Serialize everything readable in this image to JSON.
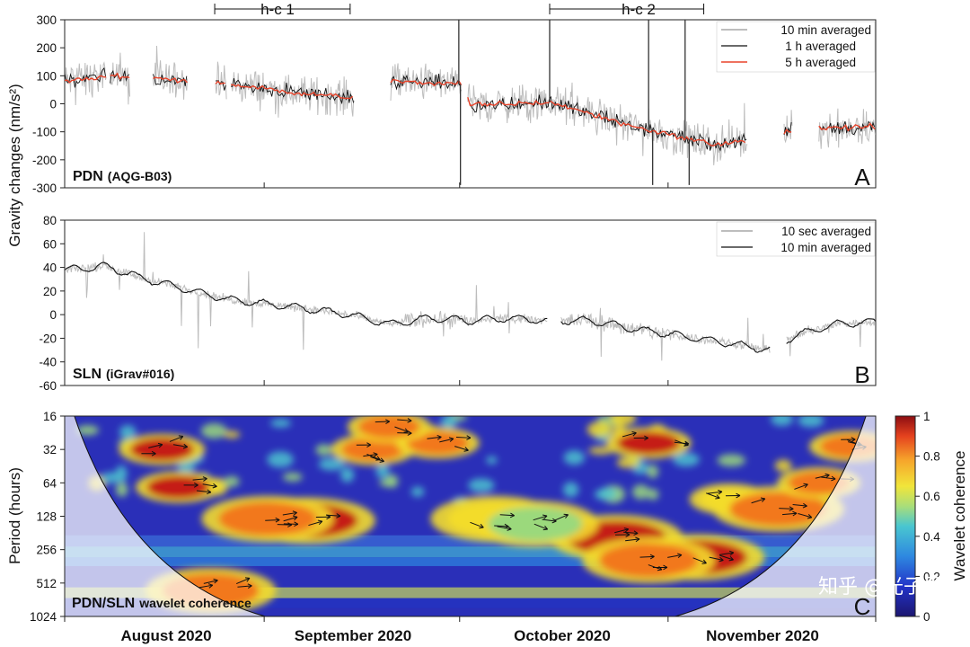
{
  "y_axis_label": "Gravity changes (nm/s²)",
  "x_axis": {
    "months": [
      "August 2020",
      "September 2020",
      "October 2020",
      "November 2020"
    ]
  },
  "watermark": "知乎 @光子鼠",
  "chart_data": [
    {
      "type": "line",
      "panel": "A",
      "station": "PDN",
      "instrument": "(AQG-B03)",
      "ylim": [
        -300,
        300
      ],
      "yticks": [
        300,
        200,
        100,
        0,
        -100,
        -200,
        -300
      ],
      "legend": [
        "10 min averaged",
        "1 h averaged",
        "5 h averaged"
      ],
      "colors": {
        "raw": "#bdbdbd",
        "mid": "#111111",
        "smooth": "#e8432a"
      },
      "annotations": [
        "h-c 1",
        "h-c 2"
      ],
      "annotation_spans": [
        [
          0.185,
          0.352
        ],
        [
          0.598,
          0.788
        ]
      ],
      "segments": [
        [
          0.0,
          0.052
        ],
        [
          0.056,
          0.081
        ],
        [
          0.109,
          0.152
        ],
        [
          0.186,
          0.2
        ],
        [
          0.205,
          0.358
        ],
        [
          0.402,
          0.49
        ],
        [
          0.497,
          0.842
        ],
        [
          0.887,
          0.897
        ],
        [
          0.93,
          1.0
        ]
      ],
      "trend": [
        [
          0.0,
          80
        ],
        [
          0.05,
          100
        ],
        [
          0.15,
          85
        ],
        [
          0.2,
          70
        ],
        [
          0.3,
          35
        ],
        [
          0.36,
          20
        ],
        [
          0.4,
          80
        ],
        [
          0.49,
          70
        ],
        [
          0.5,
          -5
        ],
        [
          0.6,
          5
        ],
        [
          0.7,
          -80
        ],
        [
          0.8,
          -145
        ],
        [
          0.85,
          -130
        ],
        [
          0.9,
          -95
        ],
        [
          1.0,
          -80
        ]
      ],
      "spikes": [
        [
          0.486,
          300
        ],
        [
          0.488,
          -290
        ],
        [
          0.598,
          300
        ],
        [
          0.72,
          300
        ],
        [
          0.725,
          -290
        ],
        [
          0.765,
          300
        ],
        [
          0.77,
          -290
        ]
      ]
    },
    {
      "type": "line",
      "panel": "B",
      "station": "SLN",
      "instrument": "(iGrav#016)",
      "ylim": [
        -60,
        80
      ],
      "yticks": [
        80,
        60,
        40,
        20,
        0,
        -20,
        -40,
        -60
      ],
      "legend": [
        "10 sec averaged",
        "10 min averaged"
      ],
      "colors": {
        "raw": "#bdbdbd",
        "smooth": "#111111"
      },
      "segments": [
        [
          0.0,
          0.595
        ],
        [
          0.612,
          0.87
        ],
        [
          0.89,
          1.0
        ]
      ],
      "trend": [
        [
          0.0,
          38
        ],
        [
          0.05,
          41
        ],
        [
          0.1,
          30
        ],
        [
          0.2,
          13
        ],
        [
          0.3,
          5
        ],
        [
          0.35,
          0
        ],
        [
          0.4,
          -8
        ],
        [
          0.45,
          -3
        ],
        [
          0.5,
          -5
        ],
        [
          0.55,
          -3
        ],
        [
          0.6,
          -5
        ],
        [
          0.65,
          -5
        ],
        [
          0.7,
          -12
        ],
        [
          0.8,
          -22
        ],
        [
          0.87,
          -30
        ],
        [
          0.9,
          -18
        ],
        [
          0.95,
          -8
        ],
        [
          1.0,
          -6
        ]
      ]
    },
    {
      "type": "heatmap",
      "panel": "C",
      "title": "PDN / SLN wavelet coherence",
      "label_left": "PDN",
      "label_right": "SLN",
      "label_rest": "wavelet coherence",
      "ylabel": "Period (hours)",
      "yticks": [
        "16",
        "32",
        "64",
        "128",
        "256",
        "512",
        "1024"
      ],
      "colorbar": {
        "label": "Wavelet coherence",
        "ticks": [
          "1",
          "0.8",
          "0.6",
          "0.4",
          "0.2",
          "0"
        ],
        "min": 0,
        "max": 1
      },
      "hotspots": [
        [
          0.12,
          32,
          0.95
        ],
        [
          0.14,
          70,
          0.9
        ],
        [
          0.3,
          140,
          0.95
        ],
        [
          0.25,
          135,
          0.8
        ],
        [
          0.38,
          32,
          0.85
        ],
        [
          0.46,
          28,
          0.8
        ],
        [
          0.53,
          135,
          0.6
        ],
        [
          0.72,
          28,
          0.9
        ],
        [
          0.68,
          200,
          0.9
        ],
        [
          0.78,
          300,
          0.95
        ],
        [
          0.72,
          320,
          0.85
        ],
        [
          0.82,
          90,
          0.65
        ],
        [
          0.88,
          110,
          0.8
        ],
        [
          0.93,
          64,
          0.8
        ],
        [
          0.97,
          30,
          0.85
        ],
        [
          0.58,
          150,
          0.55
        ],
        [
          0.18,
          600,
          0.75
        ],
        [
          0.4,
          20,
          0.8
        ]
      ]
    }
  ]
}
